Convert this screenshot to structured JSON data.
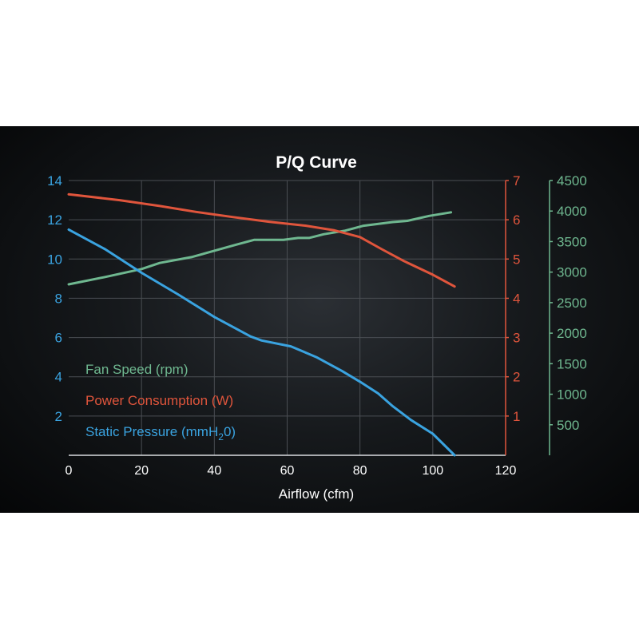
{
  "chart_data": {
    "type": "line",
    "title": "P/Q Curve",
    "xlabel": "Airflow (cfm)",
    "xlim": [
      0,
      120
    ],
    "x_ticks": [
      "0",
      "20",
      "40",
      "60",
      "80",
      "100",
      "120"
    ],
    "grid": true,
    "legend_position": "bottom-left",
    "background": "#101316",
    "axes": {
      "left": {
        "lim": [
          0,
          14
        ],
        "ticks": [
          "2",
          "4",
          "6",
          "8",
          "10",
          "12",
          "14"
        ],
        "color": "#3aa3e0"
      },
      "right1": {
        "lim": [
          0,
          7
        ],
        "ticks": [
          "1",
          "2",
          "3",
          "4",
          "5",
          "6",
          "7"
        ],
        "color": "#e0553c"
      },
      "right2": {
        "lim": [
          0,
          4500
        ],
        "ticks": [
          "500",
          "1000",
          "1500",
          "2000",
          "2500",
          "3000",
          "3500",
          "4000",
          "4500"
        ],
        "color": "#6fb890"
      }
    },
    "series": [
      {
        "name": "Fan Speed (rpm)",
        "axis": "right2",
        "color": "#6fb890",
        "points": [
          [
            0,
            2800
          ],
          [
            10,
            2920
          ],
          [
            20,
            3050
          ],
          [
            25,
            3150
          ],
          [
            34,
            3250
          ],
          [
            40,
            3350
          ],
          [
            46,
            3450
          ],
          [
            51,
            3530
          ],
          [
            59,
            3530
          ],
          [
            63,
            3560
          ],
          [
            66,
            3560
          ],
          [
            70,
            3620
          ],
          [
            76,
            3680
          ],
          [
            81,
            3760
          ],
          [
            89,
            3820
          ],
          [
            93,
            3840
          ],
          [
            99,
            3920
          ],
          [
            105,
            3980
          ]
        ]
      },
      {
        "name": "Power Consumption (W)",
        "axis": "right1",
        "color": "#e0553c",
        "points": [
          [
            0,
            6.65
          ],
          [
            14,
            6.5
          ],
          [
            25,
            6.35
          ],
          [
            35,
            6.2
          ],
          [
            45,
            6.07
          ],
          [
            55,
            5.95
          ],
          [
            65,
            5.85
          ],
          [
            73,
            5.73
          ],
          [
            80,
            5.56
          ],
          [
            86,
            5.25
          ],
          [
            92,
            4.95
          ],
          [
            100,
            4.6
          ],
          [
            106,
            4.3
          ]
        ]
      },
      {
        "name": "Static Pressure (mmH",
        "name_sub": "2",
        "name_tail": "0)",
        "axis": "left",
        "color": "#3aa3e0",
        "points": [
          [
            0,
            11.5
          ],
          [
            10,
            10.5
          ],
          [
            20,
            9.3
          ],
          [
            30,
            8.2
          ],
          [
            40,
            7.05
          ],
          [
            50,
            6.05
          ],
          [
            53,
            5.85
          ],
          [
            61,
            5.55
          ],
          [
            68,
            5.0
          ],
          [
            75,
            4.3
          ],
          [
            80,
            3.75
          ],
          [
            85,
            3.15
          ],
          [
            89,
            2.5
          ],
          [
            94,
            1.8
          ],
          [
            100,
            1.1
          ],
          [
            106,
            0
          ]
        ]
      }
    ]
  }
}
